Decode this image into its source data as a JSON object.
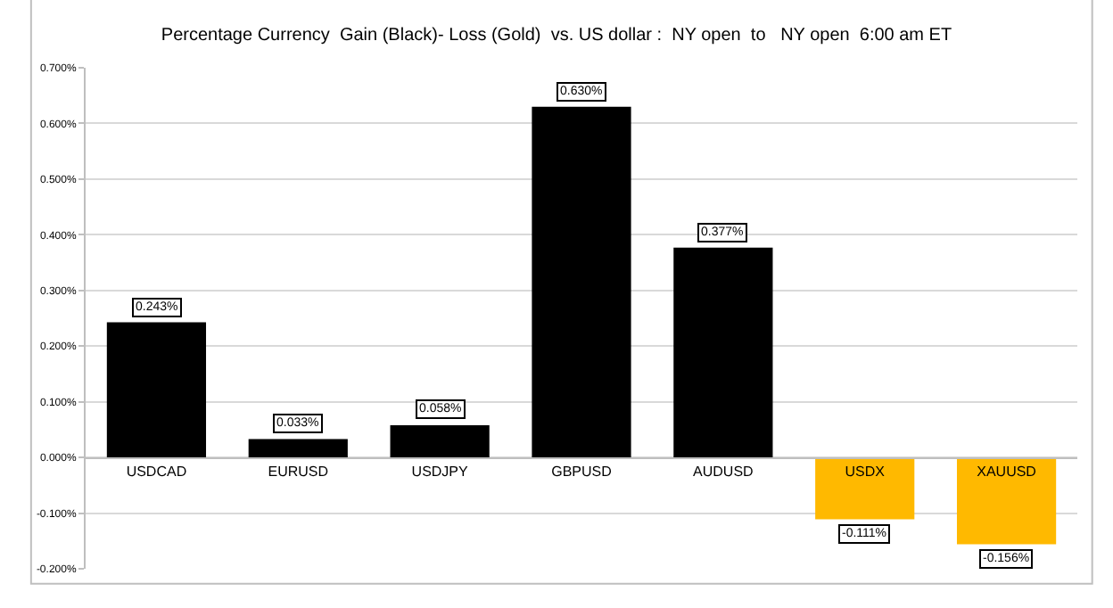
{
  "chart_data": {
    "type": "bar",
    "title": "Percentage Currency  Gain (Black)- Loss (Gold)  vs. US dollar :  NY open  to   NY open  6:00 am ET",
    "categories": [
      "USDCAD",
      "EURUSD",
      "USDJPY",
      "GBPUSD",
      "AUDUSD",
      "USDX",
      "XAUUSD"
    ],
    "values": [
      0.243,
      0.033,
      0.058,
      0.63,
      0.377,
      -0.111,
      -0.156
    ],
    "colors": [
      "#000000",
      "#000000",
      "#000000",
      "#000000",
      "#000000",
      "#ffb900",
      "#ffb900"
    ],
    "value_labels": [
      "0.243%",
      "0.033%",
      "0.058%",
      "0.630%",
      "0.377%",
      "-0.111%",
      "-0.156%"
    ],
    "ylim": [
      -0.2,
      0.7
    ],
    "yticks": [
      {
        "value": -0.2,
        "label": "-0.200%"
      },
      {
        "value": -0.1,
        "label": "-0.100%"
      },
      {
        "value": 0,
        "label": "0.000%"
      },
      {
        "value": 0.1,
        "label": "0.100%"
      },
      {
        "value": 0.2,
        "label": "0.200%"
      },
      {
        "value": 0.3,
        "label": "0.300%"
      },
      {
        "value": 0.4,
        "label": "0.400%"
      },
      {
        "value": 0.5,
        "label": "0.500%"
      },
      {
        "value": 0.6,
        "label": "0.600%"
      },
      {
        "value": 0.7,
        "label": "0.700%"
      }
    ],
    "grid": "y"
  }
}
